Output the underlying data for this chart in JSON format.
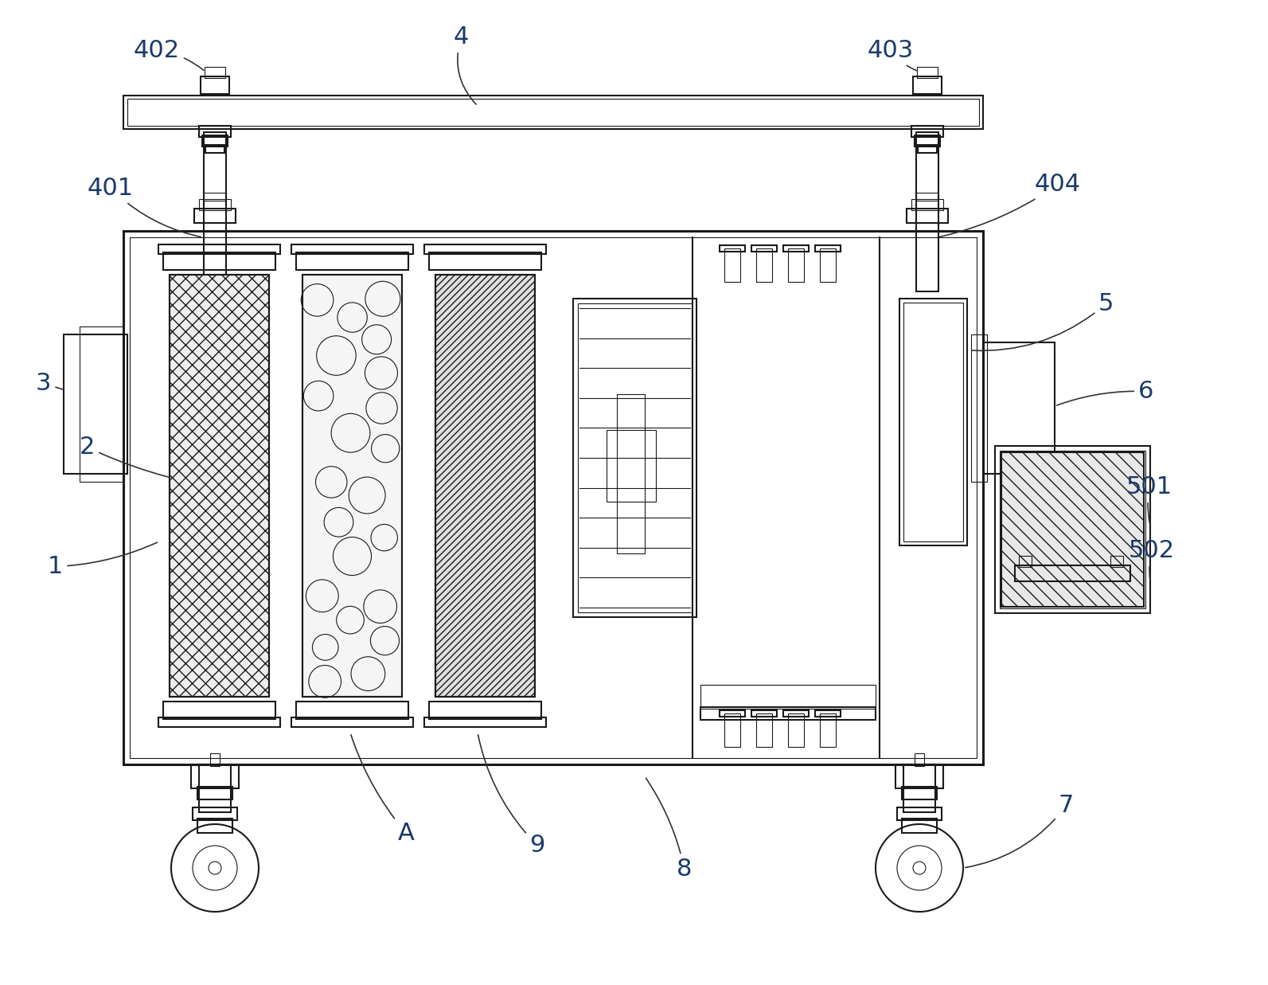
{
  "bg_color": "#ffffff",
  "lc": "#1a1a1a",
  "lw": 1.5,
  "tlw": 0.8,
  "thw": 2.2,
  "fig_width": 15.93,
  "fig_height": 12.37,
  "dpi": 100
}
